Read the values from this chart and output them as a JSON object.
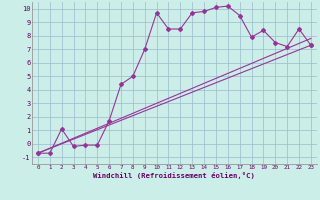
{
  "xlabel": "Windchill (Refroidissement éolien,°C)",
  "bg_color": "#cceee8",
  "grid_color": "#99bbcc",
  "line_color": "#993399",
  "xlim": [
    -0.5,
    23.5
  ],
  "ylim": [
    -1.5,
    10.5
  ],
  "xticks": [
    0,
    1,
    2,
    3,
    4,
    5,
    6,
    7,
    8,
    9,
    10,
    11,
    12,
    13,
    14,
    15,
    16,
    17,
    18,
    19,
    20,
    21,
    22,
    23
  ],
  "yticks": [
    -1,
    0,
    1,
    2,
    3,
    4,
    5,
    6,
    7,
    8,
    9,
    10
  ],
  "series1_x": [
    0,
    1,
    2,
    3,
    4,
    5,
    6,
    7,
    8,
    9,
    10,
    11,
    12,
    13,
    14,
    15,
    16,
    17,
    18,
    19,
    20,
    21,
    22,
    23
  ],
  "series1_y": [
    -0.7,
    -0.7,
    1.1,
    -0.2,
    -0.1,
    -0.1,
    1.7,
    4.4,
    5.0,
    7.0,
    9.7,
    8.5,
    8.5,
    9.7,
    9.8,
    10.1,
    10.2,
    9.5,
    7.9,
    8.4,
    7.5,
    7.2,
    8.5,
    7.3
  ],
  "series2_x": [
    0,
    23
  ],
  "series2_y": [
    -0.7,
    7.3
  ],
  "series3_x": [
    0,
    23
  ],
  "series3_y": [
    -0.7,
    7.8
  ]
}
